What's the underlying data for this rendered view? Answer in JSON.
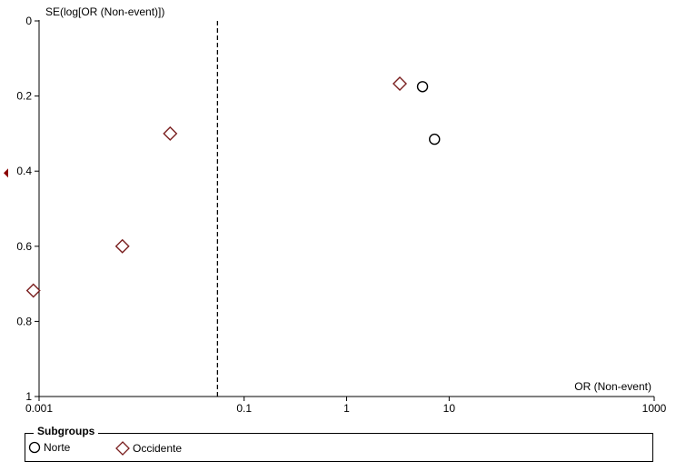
{
  "chart_data": {
    "type": "scatter",
    "title": "",
    "xlabel": "OR (Non-event)",
    "ylabel": "SE(log[OR (Non-event)])",
    "x_scale": "log",
    "xlim": [
      0.001,
      1000
    ],
    "ylim": [
      0,
      1
    ],
    "y_inverted": true,
    "x_ticks": [
      0.001,
      0.1,
      1,
      10,
      1000
    ],
    "x_tick_labels": [
      "0.001",
      "0.1",
      "1",
      "10",
      "1000"
    ],
    "y_ticks": [
      0,
      0.2,
      0.4,
      0.6,
      0.8,
      1
    ],
    "y_tick_labels": [
      "0",
      "0.2",
      "0.4",
      "0.6",
      "0.8",
      "1"
    ],
    "reference_line_x": 0.055,
    "grid": false,
    "side_marker_y": 0.405,
    "series": [
      {
        "name": "Norte",
        "marker": "circle",
        "color": "#000000",
        "points": [
          {
            "x": 5.5,
            "y": 0.175
          },
          {
            "x": 7.2,
            "y": 0.315
          }
        ]
      },
      {
        "name": "Occidente",
        "marker": "diamond",
        "color": "#7a1f1f",
        "points": [
          {
            "x": 3.3,
            "y": 0.167
          },
          {
            "x": 0.019,
            "y": 0.3
          },
          {
            "x": 0.0065,
            "y": 0.6
          },
          {
            "x": 0.00088,
            "y": 0.718
          }
        ]
      }
    ],
    "legend": {
      "title": "Subgroups",
      "placement": "bottom",
      "entries": [
        "Norte",
        "Occidente"
      ]
    }
  }
}
